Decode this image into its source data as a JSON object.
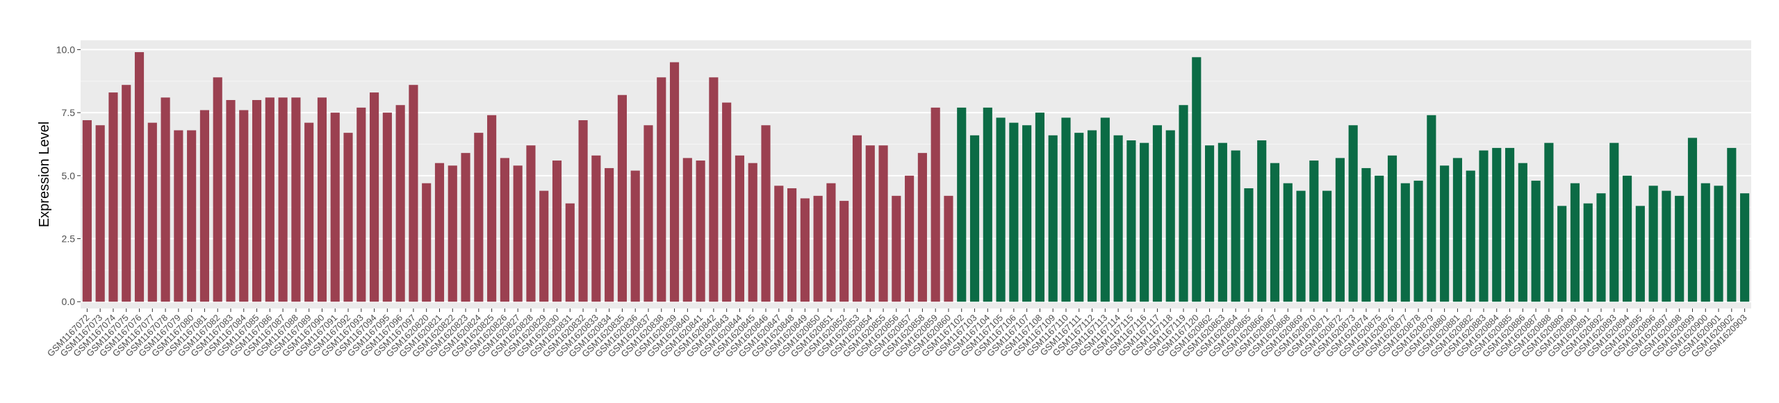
{
  "chart_data": {
    "type": "bar",
    "y_label": "Expression Level",
    "ylim": [
      -0.27,
      10.37
    ],
    "yticks": [
      {
        "value": 0,
        "label": "0.0"
      },
      {
        "value": 2.5,
        "label": "2.5"
      },
      {
        "value": 5,
        "label": "5.0"
      },
      {
        "value": 7.5,
        "label": "7.5"
      },
      {
        "value": 10,
        "label": "10.0"
      }
    ],
    "grid": true,
    "categories": [
      "GSM1167072",
      "GSM1167073",
      "GSM1167074",
      "GSM1167075",
      "GSM1167076",
      "GSM1167077",
      "GSM1167078",
      "GSM1167079",
      "GSM1167080",
      "GSM1167081",
      "GSM1167082",
      "GSM1167083",
      "GSM1167084",
      "GSM1167085",
      "GSM1167086",
      "GSM1167087",
      "GSM1167088",
      "GSM1167089",
      "GSM1167090",
      "GSM1167091",
      "GSM1167092",
      "GSM1167093",
      "GSM1167094",
      "GSM1167095",
      "GSM1167096",
      "GSM1167097",
      "GSM1620820",
      "GSM1620821",
      "GSM1620822",
      "GSM1620823",
      "GSM1620824",
      "GSM1620825",
      "GSM1620826",
      "GSM1620827",
      "GSM1620828",
      "GSM1620829",
      "GSM1620830",
      "GSM1620831",
      "GSM1620832",
      "GSM1620833",
      "GSM1620834",
      "GSM1620835",
      "GSM1620836",
      "GSM1620837",
      "GSM1620838",
      "GSM1620839",
      "GSM1620840",
      "GSM1620841",
      "GSM1620842",
      "GSM1620843",
      "GSM1620844",
      "GSM1620845",
      "GSM1620846",
      "GSM1620847",
      "GSM1620848",
      "GSM1620849",
      "GSM1620850",
      "GSM1620851",
      "GSM1620852",
      "GSM1620853",
      "GSM1620854",
      "GSM1620855",
      "GSM1620856",
      "GSM1620857",
      "GSM1620858",
      "GSM1620859",
      "GSM1620860",
      "GSM1167102",
      "GSM1167103",
      "GSM1167104",
      "GSM1167105",
      "GSM1167106",
      "GSM1167107",
      "GSM1167108",
      "GSM1167109",
      "GSM1167110",
      "GSM1167111",
      "GSM1167112",
      "GSM1167113",
      "GSM1167114",
      "GSM1167115",
      "GSM1167116",
      "GSM1167117",
      "GSM1167118",
      "GSM1167119",
      "GSM1167120",
      "GSM1620862",
      "GSM1620863",
      "GSM1620864",
      "GSM1620865",
      "GSM1620866",
      "GSM1620867",
      "GSM1620868",
      "GSM1620869",
      "GSM1620870",
      "GSM1620871",
      "GSM1620872",
      "GSM1620873",
      "GSM1620874",
      "GSM1620875",
      "GSM1620876",
      "GSM1620877",
      "GSM1620878",
      "GSM1620879",
      "GSM1620880",
      "GSM1620881",
      "GSM1620882",
      "GSM1620883",
      "GSM1620884",
      "GSM1620885",
      "GSM1620886",
      "GSM1620887",
      "GSM1620888",
      "GSM1620889",
      "GSM1620890",
      "GSM1620891",
      "GSM1620892",
      "GSM1620893",
      "GSM1620894",
      "GSM1620895",
      "GSM1620896",
      "GSM1620897",
      "GSM1620898",
      "GSM1620899",
      "GSM1620900",
      "GSM1620901",
      "GSM1620902",
      "GSM1620903"
    ],
    "series": [
      {
        "color": "#9b4050",
        "values": [
          7.2,
          7.0,
          8.3,
          8.6,
          9.9,
          7.1,
          8.1,
          6.8,
          6.8,
          7.6,
          8.9,
          8.0,
          7.6,
          8.0,
          8.1,
          8.1,
          8.1,
          7.1,
          8.1,
          7.5,
          6.7,
          7.7,
          8.3,
          7.5,
          7.8,
          8.6,
          4.7,
          5.5,
          5.4,
          5.9,
          6.7,
          7.4,
          5.7,
          5.4,
          6.2,
          4.4,
          5.6,
          3.9,
          7.2,
          5.8,
          5.3,
          8.2,
          5.2,
          7.0,
          8.9,
          9.5,
          5.7,
          5.6,
          8.9,
          7.9,
          5.8,
          5.5,
          7.0,
          4.6,
          4.5,
          4.1,
          4.2,
          4.7,
          4.0,
          6.6,
          6.2,
          6.2,
          4.2,
          5.0,
          5.9,
          7.7,
          4.2,
          null,
          null,
          null,
          null,
          null,
          null,
          null,
          null,
          null,
          null,
          null,
          null,
          null,
          null,
          null,
          null,
          null,
          null,
          null,
          null,
          null,
          null,
          null,
          null,
          null,
          null,
          null,
          null,
          null,
          null,
          null,
          null,
          null,
          null,
          null,
          null,
          null,
          null,
          null,
          null,
          null,
          null,
          null,
          null,
          null,
          null,
          null,
          null,
          null,
          null,
          null,
          null,
          null,
          null,
          null,
          null,
          null,
          null,
          null,
          null,
          null
        ]
      },
      {
        "color": "#0b6b45",
        "values": [
          null,
          null,
          null,
          null,
          null,
          null,
          null,
          null,
          null,
          null,
          null,
          null,
          null,
          null,
          null,
          null,
          null,
          null,
          null,
          null,
          null,
          null,
          null,
          null,
          null,
          null,
          null,
          null,
          null,
          null,
          null,
          null,
          null,
          null,
          null,
          null,
          null,
          null,
          null,
          null,
          null,
          null,
          null,
          null,
          null,
          null,
          null,
          null,
          null,
          null,
          null,
          null,
          null,
          null,
          null,
          null,
          null,
          null,
          null,
          null,
          null,
          null,
          null,
          null,
          null,
          null,
          null,
          7.7,
          6.6,
          7.7,
          7.3,
          7.1,
          7.0,
          7.5,
          6.6,
          7.3,
          6.7,
          6.8,
          7.3,
          6.6,
          6.4,
          6.3,
          7.0,
          6.8,
          7.8,
          9.7,
          6.2,
          6.3,
          6.0,
          4.5,
          6.4,
          5.5,
          4.7,
          4.4,
          5.6,
          4.4,
          5.7,
          7.0,
          5.3,
          5.0,
          5.8,
          4.7,
          4.8,
          7.4,
          5.4,
          5.7,
          5.2,
          6.0,
          6.1,
          6.1,
          5.5,
          4.8,
          6.3,
          3.8,
          4.7,
          3.9,
          4.3,
          6.3,
          5.0,
          3.8,
          4.6,
          4.4,
          4.2,
          6.5,
          4.7,
          4.6,
          6.1,
          4.3
        ]
      }
    ]
  }
}
